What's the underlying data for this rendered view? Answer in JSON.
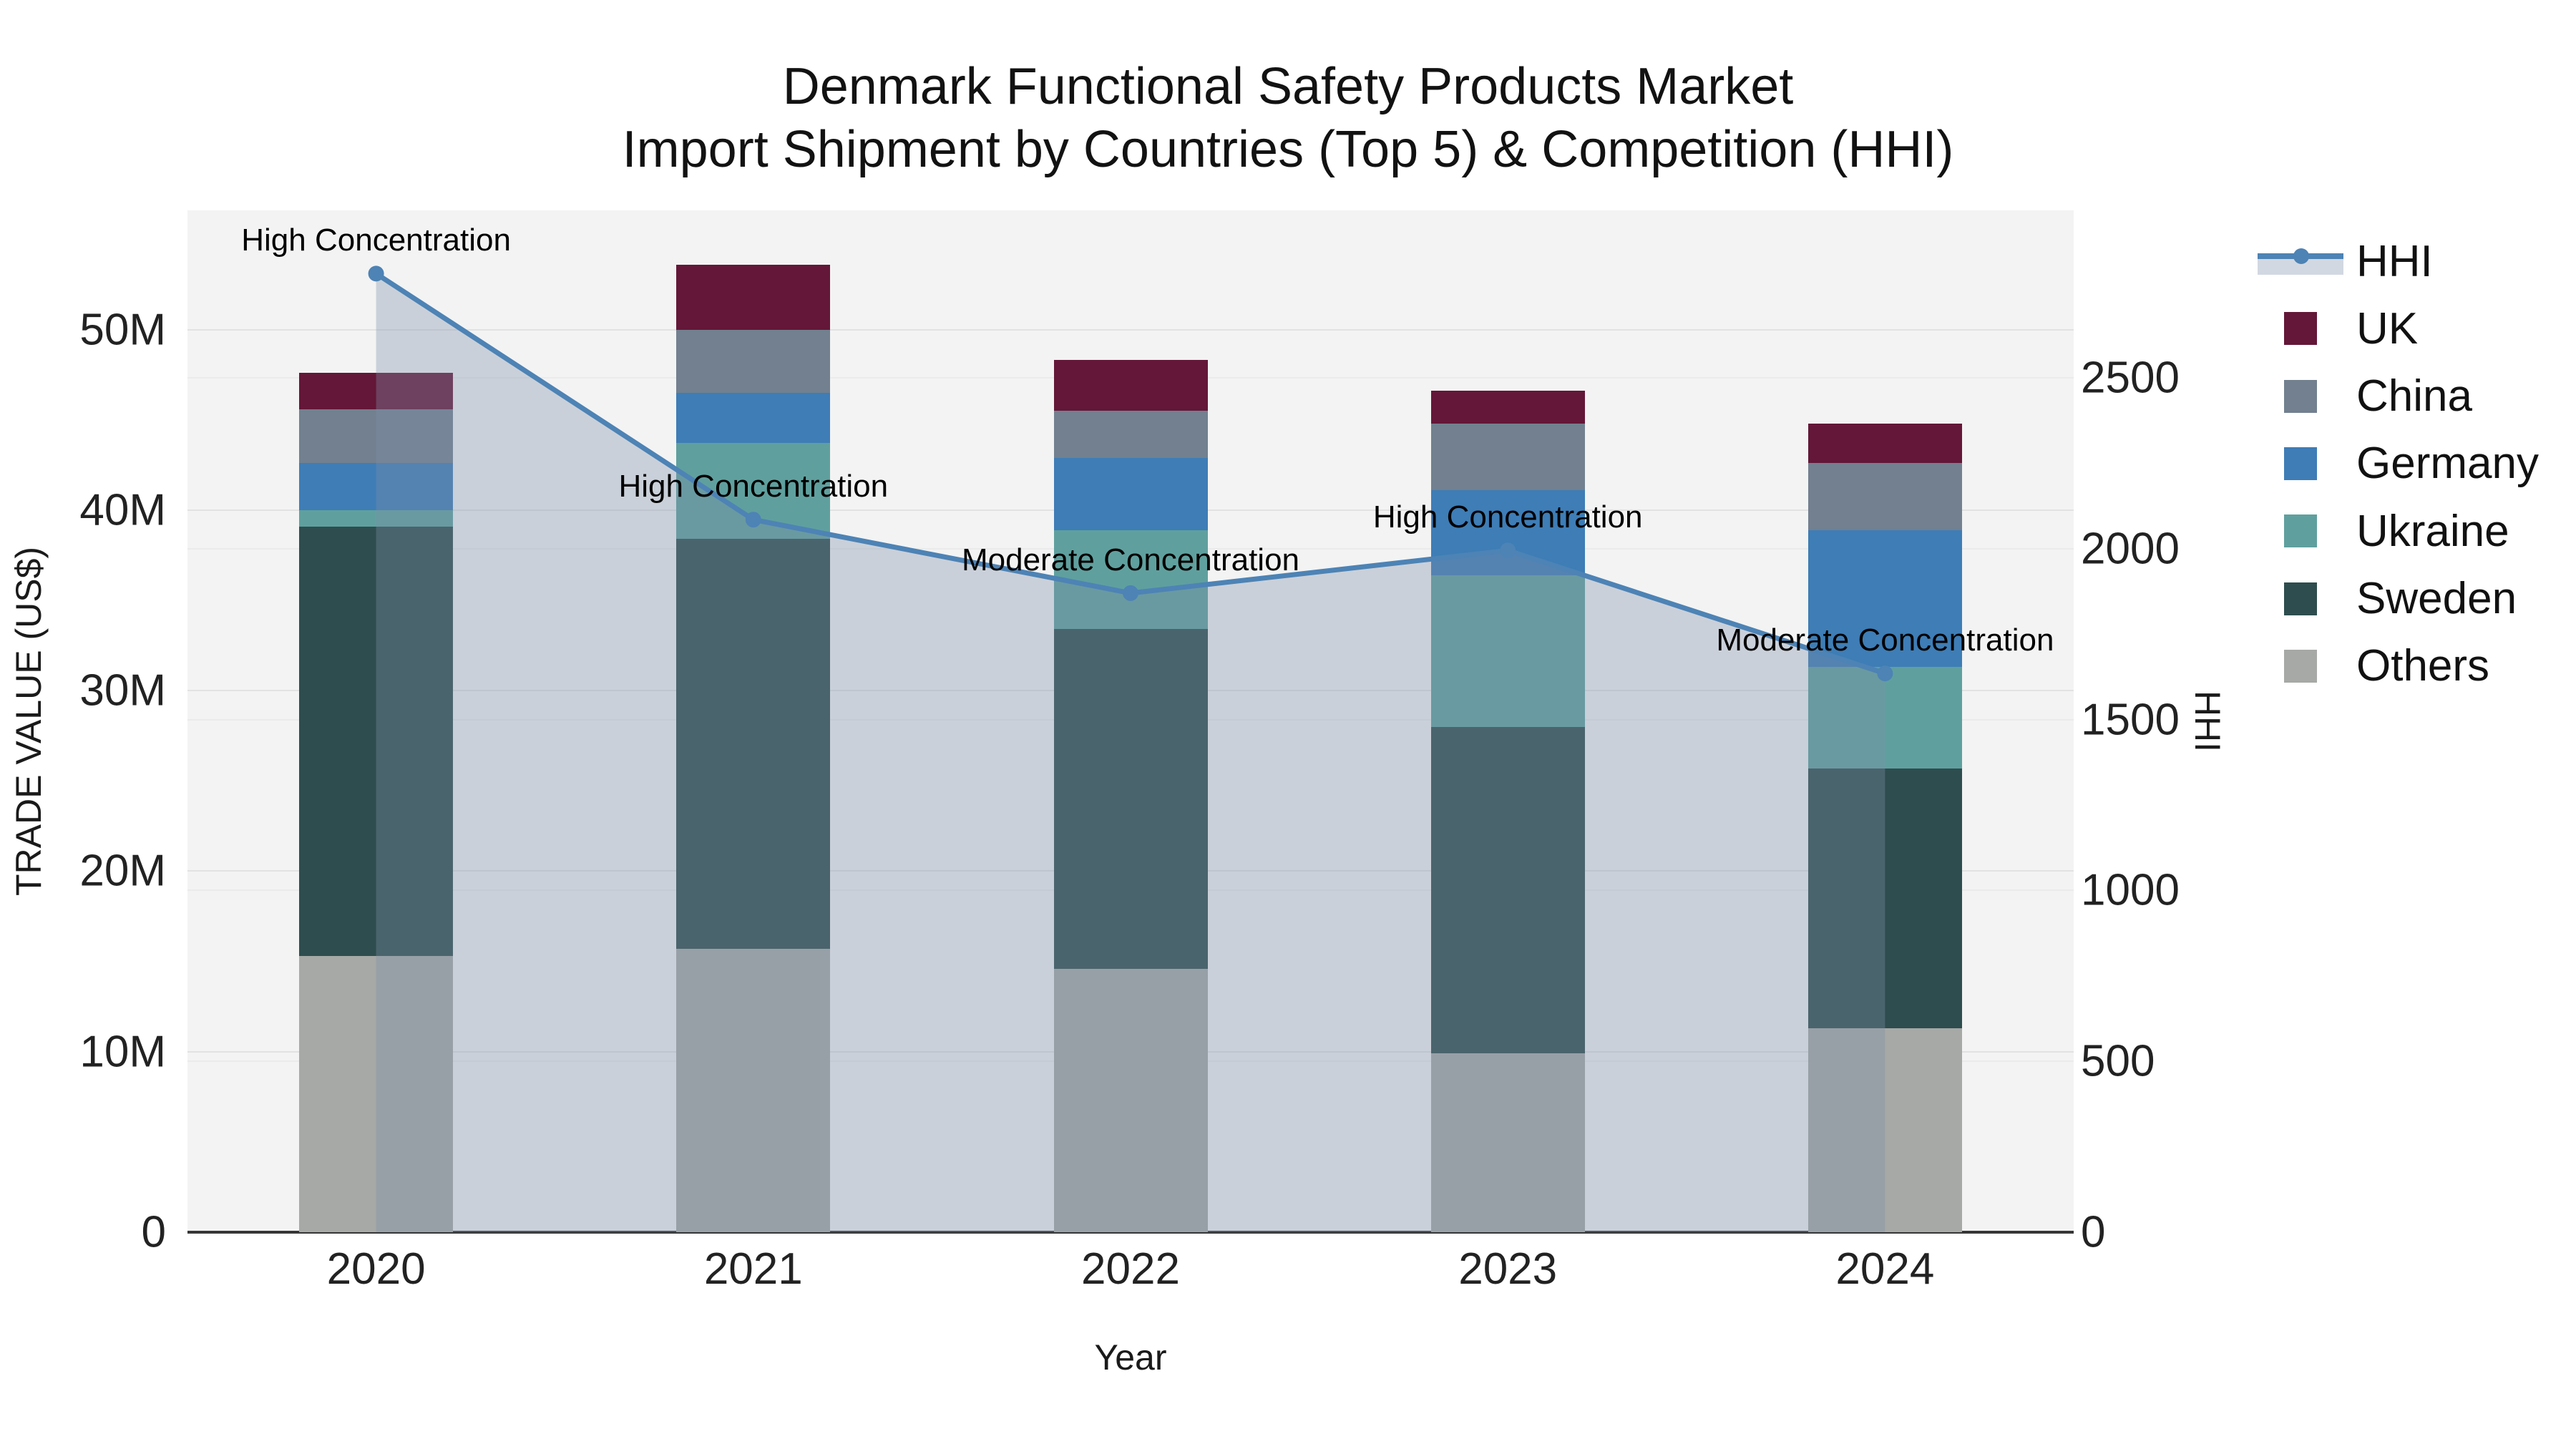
{
  "chart_data": {
    "type": "bar+line combo (stacked bars with secondary-axis line and area fill)",
    "title_line1": "Denmark Functional Safety Products Market",
    "title_line2": "Import Shipment by Countries (Top 5) & Competition (HHI)",
    "xlabel": "Year",
    "ylabel": "TRADE VALUE (US$)",
    "y2label": "HHI",
    "categories": [
      "2020",
      "2021",
      "2022",
      "2023",
      "2024"
    ],
    "series": [
      {
        "name": "UK",
        "color": "#641738",
        "values_musd": [
          2.0,
          3.6,
          2.8,
          1.8,
          2.2
        ]
      },
      {
        "name": "China",
        "color": "#72808f",
        "values_musd": [
          3.0,
          3.5,
          2.6,
          3.7,
          3.7
        ]
      },
      {
        "name": "Germany",
        "color": "#3e7db6",
        "values_musd": [
          2.6,
          2.8,
          4.0,
          4.7,
          7.6
        ]
      },
      {
        "name": "Ukraine",
        "color": "#5fa09e",
        "values_musd": [
          0.9,
          5.3,
          5.5,
          8.4,
          5.6
        ]
      },
      {
        "name": "Sweden",
        "color": "#2e4d4e",
        "values_musd": [
          23.8,
          22.7,
          18.8,
          18.1,
          14.4
        ]
      },
      {
        "name": "Others",
        "color": "#a6a9a6",
        "values_musd": [
          15.3,
          15.7,
          14.6,
          9.9,
          11.3
        ]
      }
    ],
    "stack_order_bottom_to_top": [
      "Others",
      "Sweden",
      "Ukraine",
      "Germany",
      "China",
      "UK"
    ],
    "line_series": {
      "name": "HHI",
      "color": "#4d83b5",
      "fill_color": "rgba(126,143,169,0.35)",
      "values": [
        2805,
        2085,
        1870,
        1995,
        1635
      ]
    },
    "annotations": [
      {
        "year": "2020",
        "text": "High Concentration"
      },
      {
        "year": "2021",
        "text": "High Concentration"
      },
      {
        "year": "2022",
        "text": "Moderate Concentration"
      },
      {
        "year": "2023",
        "text": "High Concentration"
      },
      {
        "year": "2024",
        "text": "Moderate Concentration"
      }
    ],
    "y_axis": {
      "ticks_musd": [
        0,
        10,
        20,
        30,
        40,
        50
      ],
      "tick_labels": [
        "0",
        "10M",
        "20M",
        "30M",
        "40M",
        "50M"
      ],
      "max_musd": 56.6
    },
    "y2_axis": {
      "ticks": [
        0,
        500,
        1000,
        1500,
        2000,
        2500
      ],
      "tick_labels": [
        "0",
        "500",
        "1000",
        "1500",
        "2000",
        "2500"
      ],
      "max": 2990
    },
    "legend_order": [
      "HHI",
      "UK",
      "China",
      "Germany",
      "Ukraine",
      "Sweden",
      "Others"
    ],
    "grid": "horizontal gridlines for both axes",
    "legend_position": "outside top-right",
    "plot_background": "#f3f3f3"
  }
}
